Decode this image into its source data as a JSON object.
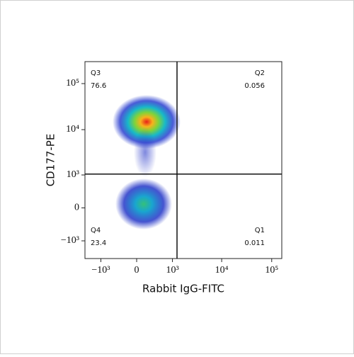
{
  "chart_data": {
    "type": "quadrant-density",
    "x_label": "Rabbit IgG-FITC",
    "y_label": "CD177-PE",
    "scale": "biexponential",
    "xlim": [
      -2140,
      159000
    ],
    "ylim": [
      -2500,
      300000
    ],
    "xticks": [
      {
        "value": -1000,
        "label": "−10³"
      },
      0,
      {
        "value": 1000,
        "label": "10³"
      },
      {
        "value": 10000,
        "label": "10⁴"
      },
      {
        "value": 100000,
        "label": "10⁵"
      }
    ],
    "yticks": [
      {
        "value": -1000,
        "label": "−10³"
      },
      0,
      {
        "value": 1000,
        "label": "10³"
      },
      {
        "value": 10000,
        "label": "10⁴"
      },
      {
        "value": 100000,
        "label": "10⁵"
      }
    ],
    "gate_x": 1250,
    "gate_y": 1050,
    "quadrants": [
      {
        "name": "Q1",
        "value": 0.011,
        "corner": "bottom-right"
      },
      {
        "name": "Q2",
        "value": 0.056,
        "corner": "top-right"
      },
      {
        "name": "Q3",
        "value": 76.6,
        "corner": "top-left"
      },
      {
        "name": "Q4",
        "value": 23.4,
        "corner": "bottom-left"
      }
    ]
  }
}
